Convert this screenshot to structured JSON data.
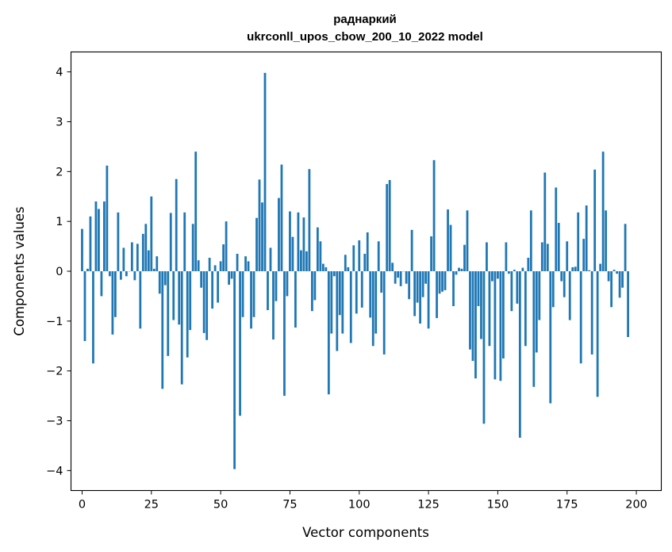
{
  "chart_data": {
    "type": "bar",
    "title": "раднаркий",
    "subtitle": "ukrconll_upos_cbow_200_10_2022 model",
    "xlabel": "Vector components",
    "ylabel": "Components values",
    "xlim": [
      -4,
      209
    ],
    "ylim": [
      -4.4,
      4.4
    ],
    "xticks": [
      0,
      25,
      50,
      75,
      100,
      125,
      150,
      175,
      200
    ],
    "yticks": [
      -4,
      -3,
      -2,
      -1,
      0,
      1,
      2,
      3,
      4
    ],
    "bar_color": "#1f77b4",
    "values": [
      0.85,
      -1.4,
      0.05,
      1.1,
      -1.85,
      1.4,
      1.25,
      -0.5,
      1.4,
      2.12,
      -0.1,
      -1.27,
      -0.92,
      1.18,
      -0.17,
      0.47,
      -0.1,
      0.0,
      0.58,
      -0.18,
      0.55,
      -1.15,
      0.75,
      0.95,
      0.42,
      1.5,
      0.05,
      0.3,
      -0.45,
      -2.36,
      -0.28,
      -1.7,
      1.17,
      -0.98,
      1.85,
      -1.07,
      -2.27,
      1.18,
      -1.73,
      -1.18,
      0.95,
      2.4,
      0.22,
      -0.33,
      -1.24,
      -1.38,
      0.27,
      -0.75,
      0.12,
      -0.63,
      0.2,
      0.54,
      1.0,
      -0.27,
      -0.15,
      -3.97,
      0.35,
      -2.9,
      -0.92,
      0.3,
      0.2,
      -1.15,
      -0.92,
      1.07,
      1.84,
      1.38,
      3.98,
      -0.78,
      0.47,
      -1.37,
      -0.6,
      1.47,
      2.14,
      -2.5,
      -0.5,
      1.2,
      0.69,
      -1.13,
      1.18,
      0.42,
      1.08,
      0.4,
      2.05,
      -0.8,
      -0.58,
      0.88,
      0.6,
      0.15,
      0.08,
      -2.47,
      -1.25,
      -0.1,
      -1.6,
      -0.88,
      -1.25,
      0.33,
      0.08,
      -1.44,
      0.52,
      -0.85,
      0.62,
      -0.73,
      0.35,
      0.78,
      -0.93,
      -1.5,
      -1.25,
      0.6,
      -0.43,
      -1.67,
      1.75,
      1.83,
      0.17,
      -0.25,
      -0.13,
      -0.3,
      0.0,
      -0.25,
      -0.56,
      0.83,
      -0.9,
      -0.63,
      -1.05,
      -0.52,
      -0.25,
      -1.15,
      0.7,
      2.23,
      -0.94,
      -0.45,
      -0.41,
      -0.38,
      1.24,
      0.93,
      -0.7,
      -0.07,
      0.07,
      0.05,
      0.53,
      1.22,
      -1.57,
      -1.8,
      -2.15,
      -0.7,
      -1.36,
      -3.06,
      0.58,
      -1.5,
      -0.2,
      -2.17,
      -0.15,
      -2.2,
      -1.75,
      0.58,
      -0.05,
      -0.8,
      0.03,
      -0.65,
      -3.34,
      0.07,
      -1.5,
      0.27,
      1.22,
      -2.32,
      -1.63,
      -0.98,
      0.58,
      1.98,
      0.55,
      -2.65,
      -0.72,
      1.68,
      0.97,
      -0.2,
      -0.52,
      0.6,
      -0.98,
      0.08,
      0.09,
      1.18,
      -1.85,
      0.65,
      1.32,
      0.02,
      -1.67,
      2.04,
      -2.52,
      0.15,
      2.4,
      1.22,
      -0.2,
      -0.72,
      0.03,
      -0.05,
      -0.53,
      -0.33,
      0.95,
      -1.32
    ]
  }
}
